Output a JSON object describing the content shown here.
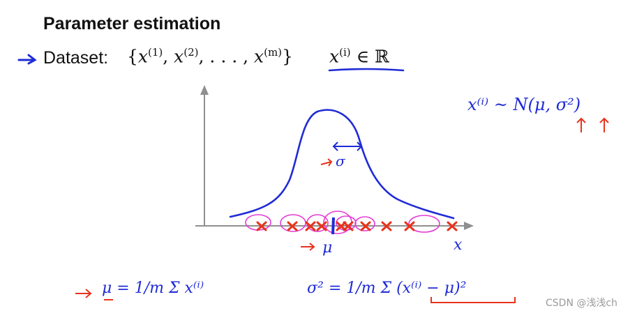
{
  "slide": {
    "title": "Parameter estimation",
    "dataset_label": "Dataset:",
    "dataset_open": "{",
    "dataset_x": "x",
    "sup1": "(1)",
    "sup2": "(2)",
    "sup_m": "(m)",
    "dataset_dots": ", . . . , ",
    "dataset_close": "}",
    "membership_x": "x",
    "membership_sup": "(i)",
    "membership_rel": " ∈ ℝ"
  },
  "annotations": {
    "axis_label": "x",
    "distribution": "x⁽ⁱ⁾ ~ N(μ, σ²)",
    "sigma_marker": "σ",
    "mu_marker": "μ",
    "mu_formula": "μ = 1/m Σ x⁽ⁱ⁾",
    "sigma_formula": "σ² = 1/m Σ (x⁽ⁱ⁾ − μ)²"
  },
  "watermark": "CSDN @浅浅ch",
  "colors": {
    "ink_blue": "#1f2bd6",
    "ink_red": "#e8321b",
    "ink_magenta": "#e43ad6",
    "axis_gray": "#8f8f8f",
    "underline_blue": "#1f2bd6"
  },
  "data_points_count": 12
}
